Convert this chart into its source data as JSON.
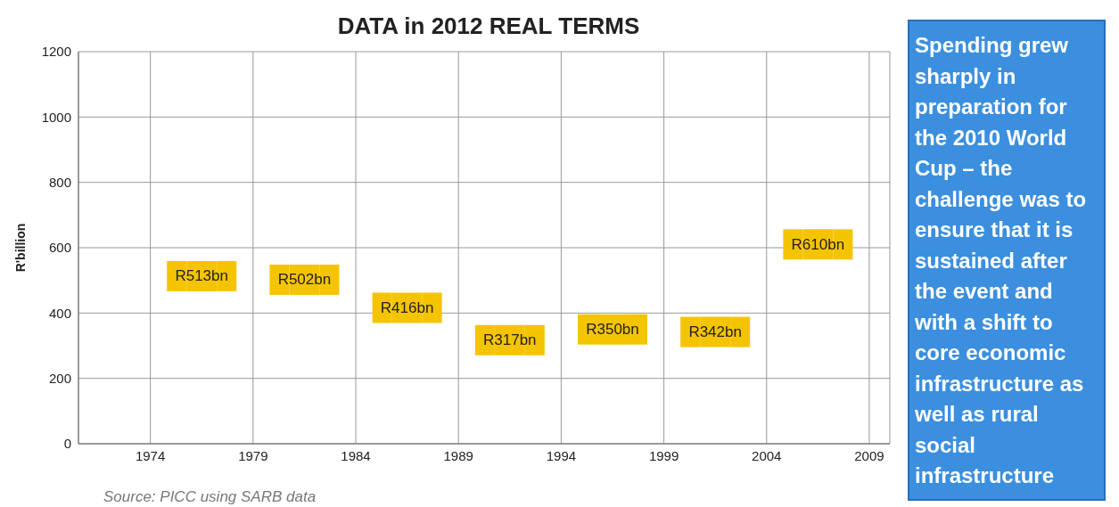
{
  "chart_data": {
    "type": "scatter",
    "title": "DATA in 2012 REAL TERMS",
    "ylabel": "R'billion",
    "x": [
      1976.5,
      1981.5,
      1986.5,
      1991.5,
      1996.5,
      2001.5,
      2006.5
    ],
    "series": [
      {
        "color": "#f5c400",
        "values": [
          513,
          502,
          416,
          317,
          350,
          342,
          610
        ],
        "value_labels": [
          "R513bn",
          "R502bn",
          "R416bn",
          "R317bn",
          "R350bn",
          "R342bn",
          "R610bn"
        ]
      }
    ],
    "marker": "square",
    "xlim": [
      1970.5,
      2010
    ],
    "xticks": [
      1974,
      1979,
      1984,
      1989,
      1994,
      1999,
      2004,
      2009
    ],
    "ylim": [
      0,
      1200
    ],
    "yticks": [
      0,
      200,
      400,
      600,
      800,
      1000,
      1200
    ],
    "grid": true,
    "annotations": [
      "Source:  PICC using SARB data",
      "Spending grew sharply in preparation for the 2010 World Cup – the challenge was to ensure that it is sustained after the event and with a shift to core economic infrastructure as well as rural social infrastructure"
    ]
  }
}
